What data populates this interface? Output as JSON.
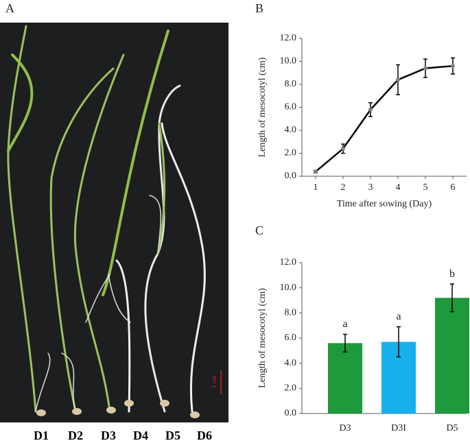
{
  "photo": {
    "panel": "A",
    "labels": [
      "D1",
      "D2",
      "D3",
      "D4",
      "D5",
      "D6"
    ],
    "scale_bar": "1 cm"
  },
  "chart_data": [
    {
      "type": "line",
      "panel": "B",
      "x_label": "Time after sowing (Day)",
      "y_label": "Length of mesocotyl (cm)",
      "x": [
        1,
        2,
        3,
        4,
        5,
        6
      ],
      "xlim": [
        0.5,
        6.5
      ],
      "xticks": [
        1,
        2,
        3,
        4,
        5,
        6
      ],
      "series": [
        {
          "color": "#000000",
          "marker_color": "#808080",
          "values": [
            0.4,
            2.4,
            5.8,
            8.4,
            9.4,
            9.6
          ],
          "errors": [
            0.1,
            0.4,
            0.6,
            1.3,
            0.8,
            0.7
          ]
        }
      ],
      "ylim": [
        0,
        12
      ],
      "yticks": [
        {
          "value": 0,
          "label": "0.0"
        },
        {
          "value": 2,
          "label": "2.0"
        },
        {
          "value": 4,
          "label": "4.0"
        },
        {
          "value": 6,
          "label": "6.0"
        },
        {
          "value": 8,
          "label": "8.0"
        },
        {
          "value": 10,
          "label": "10.0"
        },
        {
          "value": 12,
          "label": "12.0"
        }
      ]
    },
    {
      "type": "bar",
      "panel": "C",
      "y_label": "Length of mesocotyl (cm)",
      "categories": [
        "D3",
        "D3I",
        "D5"
      ],
      "values": [
        5.6,
        5.7,
        9.2
      ],
      "errors": [
        0.7,
        1.2,
        1.1
      ],
      "annotations": [
        "a",
        "a",
        "b"
      ],
      "colors": [
        "#1e9a3c",
        "#17b0ec",
        "#1e9a3c"
      ],
      "ylim": [
        0,
        12
      ],
      "yticks": [
        {
          "value": 0,
          "label": "0.0"
        },
        {
          "value": 2,
          "label": "2.0"
        },
        {
          "value": 4,
          "label": "4.0"
        },
        {
          "value": 6,
          "label": "6.0"
        },
        {
          "value": 8,
          "label": "8.0"
        },
        {
          "value": 10,
          "label": "10.0"
        },
        {
          "value": 12,
          "label": "12.0"
        }
      ]
    }
  ]
}
